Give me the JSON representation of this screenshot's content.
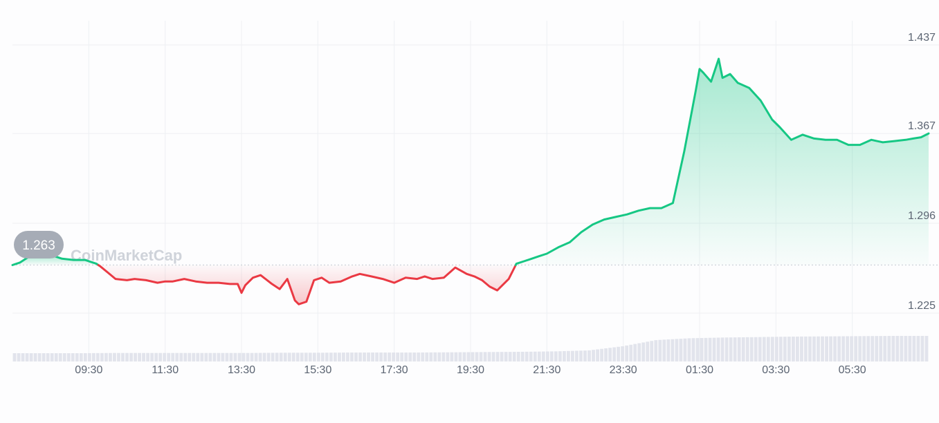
{
  "chart_data": {
    "type": "area",
    "watermark": "CoinMarketCap",
    "baseline_value": 1.263,
    "baseline_label": "1.263",
    "ylim": [
      1.2,
      1.45
    ],
    "yticks": [
      {
        "value": 1.437,
        "label": "1.437"
      },
      {
        "value": 1.367,
        "label": "1.367"
      },
      {
        "value": 1.296,
        "label": "1.296"
      },
      {
        "value": 1.225,
        "label": "1.225"
      }
    ],
    "xlim": [
      0,
      24
    ],
    "xticks": [
      {
        "value": 2.0,
        "label": "09:30"
      },
      {
        "value": 4.0,
        "label": "11:30"
      },
      {
        "value": 6.0,
        "label": "13:30"
      },
      {
        "value": 8.0,
        "label": "15:30"
      },
      {
        "value": 10.0,
        "label": "17:30"
      },
      {
        "value": 12.0,
        "label": "19:30"
      },
      {
        "value": 14.0,
        "label": "21:30"
      },
      {
        "value": 16.0,
        "label": "23:30"
      },
      {
        "value": 18.0,
        "label": "01:30"
      },
      {
        "value": 20.0,
        "label": "03:30"
      },
      {
        "value": 22.0,
        "label": "05:30"
      }
    ],
    "grid": true,
    "colors": {
      "up": "#16c784",
      "down": "#ea3943",
      "grid": "#eef0f3",
      "volume": "#e2e4ec"
    },
    "series": [
      {
        "x": [
          0.0,
          0.2,
          0.4,
          0.7,
          1.0,
          1.3,
          1.6,
          1.9,
          2.2,
          2.3,
          2.5,
          2.7,
          3.0,
          3.2,
          3.5,
          3.8,
          4.0,
          4.2,
          4.5,
          4.8,
          5.1,
          5.4,
          5.7,
          5.9,
          6.0,
          6.1,
          6.3,
          6.5,
          6.8,
          7.0,
          7.2,
          7.4,
          7.5,
          7.7,
          7.9,
          8.1,
          8.3,
          8.6,
          8.9,
          9.1,
          9.4,
          9.7,
          10.0,
          10.3,
          10.6,
          10.8,
          11.0,
          11.3,
          11.6,
          11.9,
          12.1,
          12.3,
          12.5,
          12.7,
          13.0,
          13.2,
          13.4,
          13.6,
          13.8,
          14.0,
          14.3,
          14.6,
          14.9,
          15.2,
          15.5,
          15.8,
          16.1,
          16.4,
          16.7,
          17.0,
          17.3,
          17.6,
          17.9,
          18.0,
          18.1,
          18.3,
          18.5,
          18.6,
          18.8,
          19.0,
          19.3,
          19.6,
          19.9,
          20.1,
          20.4,
          20.7,
          21.0,
          21.3,
          21.6,
          21.9,
          22.2,
          22.5,
          22.8,
          23.1,
          23.4,
          23.6,
          23.8,
          24.0
        ],
        "y": [
          1.263,
          1.265,
          1.269,
          1.27,
          1.271,
          1.268,
          1.267,
          1.267,
          1.264,
          1.262,
          1.257,
          1.252,
          1.251,
          1.252,
          1.251,
          1.249,
          1.25,
          1.25,
          1.252,
          1.25,
          1.249,
          1.249,
          1.248,
          1.248,
          1.241,
          1.247,
          1.253,
          1.255,
          1.248,
          1.244,
          1.252,
          1.235,
          1.232,
          1.234,
          1.251,
          1.253,
          1.249,
          1.25,
          1.254,
          1.256,
          1.254,
          1.252,
          1.249,
          1.253,
          1.252,
          1.254,
          1.252,
          1.253,
          1.261,
          1.256,
          1.254,
          1.251,
          1.246,
          1.243,
          1.252,
          1.264,
          1.266,
          1.268,
          1.27,
          1.272,
          1.277,
          1.281,
          1.289,
          1.295,
          1.299,
          1.301,
          1.303,
          1.306,
          1.308,
          1.308,
          1.312,
          1.353,
          1.401,
          1.418,
          1.415,
          1.408,
          1.426,
          1.411,
          1.414,
          1.407,
          1.403,
          1.393,
          1.378,
          1.372,
          1.362,
          1.366,
          1.363,
          1.362,
          1.362,
          1.358,
          1.358,
          1.362,
          1.36,
          1.361,
          1.362,
          1.363,
          1.364,
          1.367
        ]
      }
    ],
    "volume_levels": [
      0.25,
      0.25,
      0.25,
      0.26,
      0.26,
      0.26,
      0.26,
      0.26,
      0.27,
      0.27,
      0.28,
      0.28,
      0.28,
      0.29,
      0.3,
      0.31,
      0.33,
      0.37,
      0.55,
      0.82,
      0.9,
      0.93,
      0.95,
      0.97,
      0.98,
      0.99,
      1.0,
      1.0
    ]
  }
}
